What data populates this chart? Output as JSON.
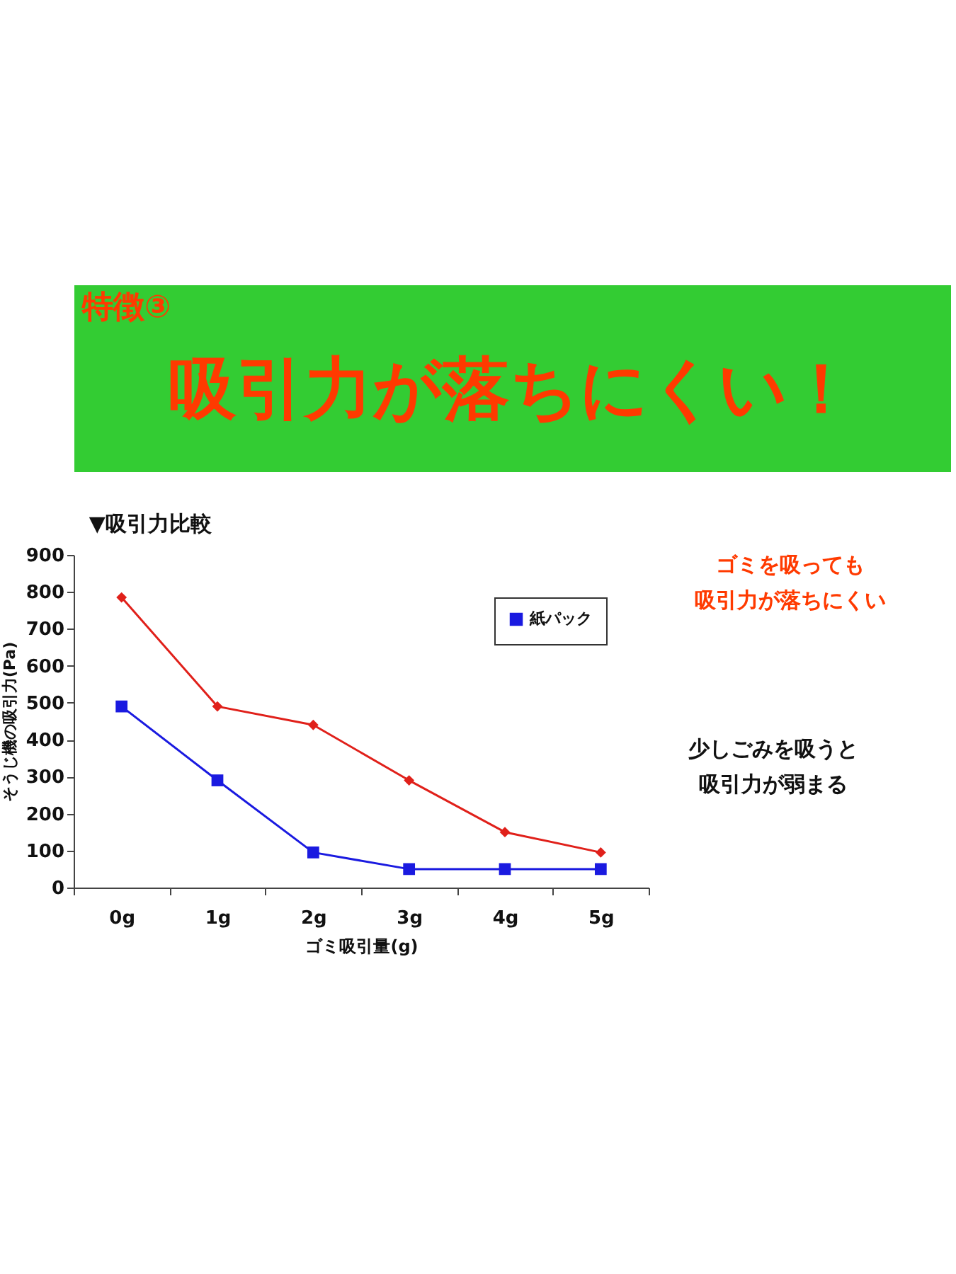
{
  "chart_data": {
    "type": "line",
    "title": "吸引力が落ちにくい！",
    "subtitle": "▼吸引力比較",
    "xlabel": "ゴミ吸引量(g)",
    "ylabel": "そうじ機の吸引力(Pa)",
    "annotations": [
      "特徴③",
      "ゴミを吸っても吸引力が落ちにくい",
      "少しごみを吸うと吸引力が弱まる"
    ],
    "categories": [
      "0g",
      "1g",
      "2g",
      "3g",
      "4g",
      "5g"
    ],
    "series": [
      {
        "color": "#e0201a",
        "marker": "diamond",
        "values": [
          785,
          490,
          440,
          290,
          150,
          95
        ]
      },
      {
        "name": "紙パック",
        "color": "#1a1ae0",
        "marker": "square",
        "values": [
          490,
          290,
          95,
          50,
          50,
          50
        ]
      }
    ],
    "ylim": [
      0,
      900
    ],
    "yticks": [
      0,
      100,
      200,
      300,
      400,
      500,
      600,
      700,
      800,
      900
    ],
    "grid": false,
    "legend": "top right",
    "line_style": "solid"
  }
}
